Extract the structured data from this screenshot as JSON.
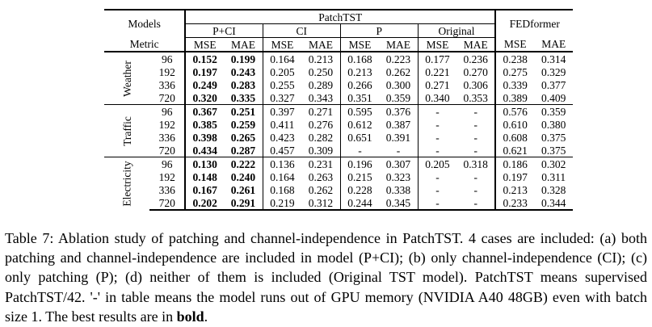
{
  "table": {
    "corner_models": "Models",
    "corner_metric": "Metric",
    "patchtst_label": "PatchTST",
    "fedformer_label": "FEDformer",
    "subgroups": [
      "P+CI",
      "CI",
      "P",
      "Original"
    ],
    "metric_labels": [
      "MSE",
      "MAE",
      "MSE",
      "MAE",
      "MSE",
      "MAE",
      "MSE",
      "MAE",
      "MSE",
      "MAE"
    ],
    "datasets": [
      {
        "name": "Weather",
        "rows": [
          {
            "len": "96",
            "cells": [
              "0.152",
              "0.199",
              "0.164",
              "0.213",
              "0.168",
              "0.223",
              "0.177",
              "0.236",
              "0.238",
              "0.314"
            ]
          },
          {
            "len": "192",
            "cells": [
              "0.197",
              "0.243",
              "0.205",
              "0.250",
              "0.213",
              "0.262",
              "0.221",
              "0.270",
              "0.275",
              "0.329"
            ]
          },
          {
            "len": "336",
            "cells": [
              "0.249",
              "0.283",
              "0.255",
              "0.289",
              "0.266",
              "0.300",
              "0.271",
              "0.306",
              "0.339",
              "0.377"
            ]
          },
          {
            "len": "720",
            "cells": [
              "0.320",
              "0.335",
              "0.327",
              "0.343",
              "0.351",
              "0.359",
              "0.340",
              "0.353",
              "0.389",
              "0.409"
            ]
          }
        ]
      },
      {
        "name": "Traffic",
        "rows": [
          {
            "len": "96",
            "cells": [
              "0.367",
              "0.251",
              "0.397",
              "0.271",
              "0.595",
              "0.376",
              "-",
              "-",
              "0.576",
              "0.359"
            ]
          },
          {
            "len": "192",
            "cells": [
              "0.385",
              "0.259",
              "0.411",
              "0.276",
              "0.612",
              "0.387",
              "-",
              "-",
              "0.610",
              "0.380"
            ]
          },
          {
            "len": "336",
            "cells": [
              "0.398",
              "0.265",
              "0.423",
              "0.282",
              "0.651",
              "0.391",
              "-",
              "-",
              "0.608",
              "0.375"
            ]
          },
          {
            "len": "720",
            "cells": [
              "0.434",
              "0.287",
              "0.457",
              "0.309",
              "-",
              "-",
              "-",
              "-",
              "0.621",
              "0.375"
            ]
          }
        ]
      },
      {
        "name": "Electricity",
        "rows": [
          {
            "len": "96",
            "cells": [
              "0.130",
              "0.222",
              "0.136",
              "0.231",
              "0.196",
              "0.307",
              "0.205",
              "0.318",
              "0.186",
              "0.302"
            ]
          },
          {
            "len": "192",
            "cells": [
              "0.148",
              "0.240",
              "0.164",
              "0.263",
              "0.215",
              "0.323",
              "-",
              "-",
              "0.197",
              "0.311"
            ]
          },
          {
            "len": "336",
            "cells": [
              "0.167",
              "0.261",
              "0.168",
              "0.262",
              "0.228",
              "0.338",
              "-",
              "-",
              "0.213",
              "0.328"
            ]
          },
          {
            "len": "720",
            "cells": [
              "0.202",
              "0.291",
              "0.219",
              "0.312",
              "0.244",
              "0.345",
              "-",
              "-",
              "0.233",
              "0.344"
            ]
          }
        ]
      }
    ]
  },
  "caption": {
    "text": "Table 7: Ablation study of patching and channel-independence in PatchTST. 4 cases are included: (a) both patching and channel-independence are included in model (P+CI); (b) only channel-independence (CI); (c) only patching (P); (d) neither of them is included (Original TST model). PatchTST means supervised PatchTST/42. '-' in table means the model runs out of GPU memory (NVIDIA A40 48GB) even with batch size 1. The best results are in ",
    "bold_word": "bold",
    "end": "."
  }
}
